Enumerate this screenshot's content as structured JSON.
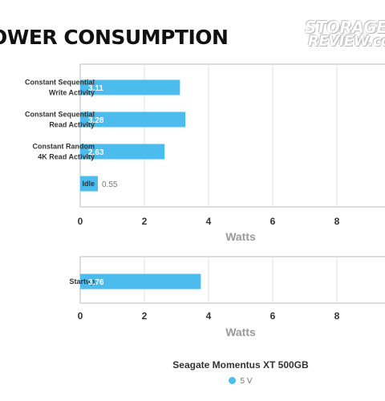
{
  "page": {
    "title": "OWER CONSUMPTION",
    "logo_line1": "STORAGE",
    "logo_line2": "REVIEW.co"
  },
  "colors": {
    "bar": "#4cbbee",
    "grid": "#e3e3e3",
    "axis": "#bbbbbb"
  },
  "chart_data": [
    {
      "type": "bar",
      "orientation": "horizontal",
      "categories": [
        [
          "Constant Sequential",
          "Write Activity"
        ],
        [
          "Constant Sequential",
          "Read Activity"
        ],
        [
          "Constant Random",
          "4K Read Activity"
        ],
        [
          "Idle"
        ]
      ],
      "series": [
        {
          "name": "5 V",
          "values": [
            3.11,
            3.28,
            2.63,
            0.55
          ]
        }
      ],
      "data_labels": [
        "3.11",
        "3.28",
        "2.63",
        "0.55"
      ],
      "xlabel": "Watts",
      "xlim": [
        0,
        10
      ],
      "xticks": [
        "0",
        "2",
        "4",
        "6",
        "8"
      ],
      "grid": true
    },
    {
      "type": "bar",
      "orientation": "horizontal",
      "categories": [
        [
          "Startup"
        ]
      ],
      "series": [
        {
          "name": "5 V",
          "values": [
            3.76
          ]
        }
      ],
      "data_labels": [
        "3.76"
      ],
      "xlabel": "Watts",
      "xlim": [
        0,
        10
      ],
      "xticks": [
        "0",
        "2",
        "4",
        "6",
        "8"
      ],
      "grid": true
    }
  ],
  "legend": {
    "title": "Seagate Momentus XT 500GB",
    "items": [
      {
        "label": "5 V",
        "color": "#4cbbee"
      }
    ]
  }
}
